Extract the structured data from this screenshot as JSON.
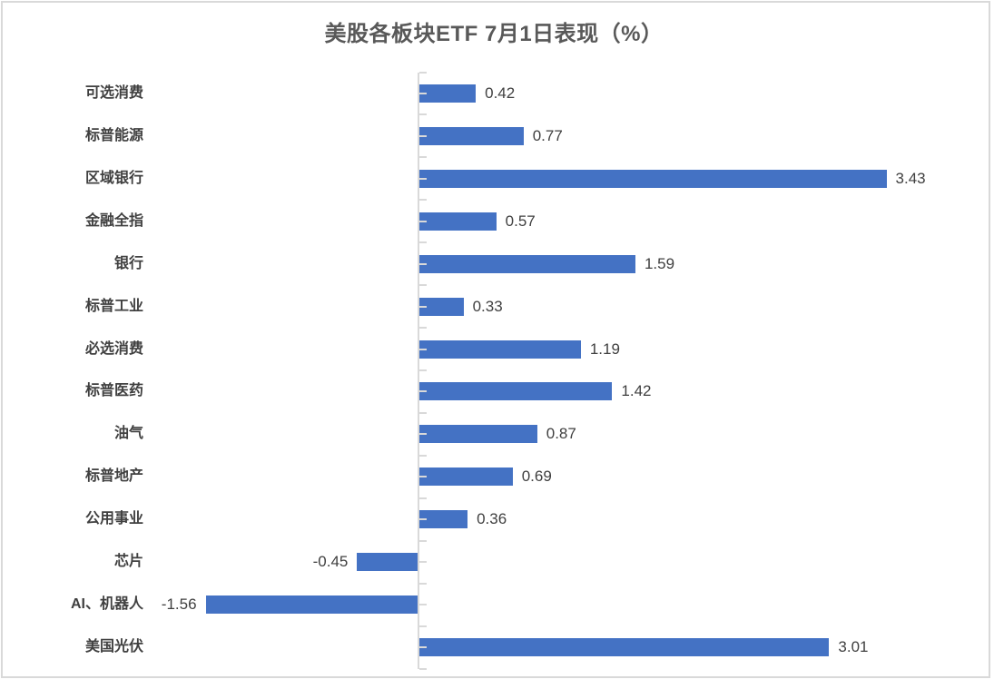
{
  "title": "美股各板块ETF 7月1日表现（%）",
  "chart_data": {
    "type": "bar",
    "orientation": "horizontal",
    "title": "美股各板块ETF 7月1日表现（%）",
    "categories": [
      "可选消费",
      "标普能源",
      "区域银行",
      "金融全指",
      "银行",
      "标普工业",
      "必选消费",
      "标普医药",
      "油气",
      "标普地产",
      "公用事业",
      "芯片",
      "AI、机器人",
      "美国光伏"
    ],
    "values": [
      0.42,
      0.77,
      3.43,
      0.57,
      1.59,
      0.33,
      1.19,
      1.42,
      0.87,
      0.69,
      0.36,
      -0.45,
      -1.56,
      3.01
    ],
    "value_labels": [
      "0.42",
      "0.77",
      "3.43",
      "0.57",
      "1.59",
      "0.33",
      "1.19",
      "1.42",
      "0.87",
      "0.69",
      "0.36",
      "-0.45",
      "-1.56",
      "3.01"
    ],
    "xlim": [
      -2,
      4
    ],
    "unit": "%",
    "grid": false,
    "legend": false,
    "value_axis_labels_visible": false,
    "data_label_position": "outside-end",
    "colors": {
      "bar": "#4472C4",
      "axis": "#D9D9D9",
      "title_text": "#595959",
      "label_text": "#404040",
      "background": "#FFFFFF"
    }
  }
}
